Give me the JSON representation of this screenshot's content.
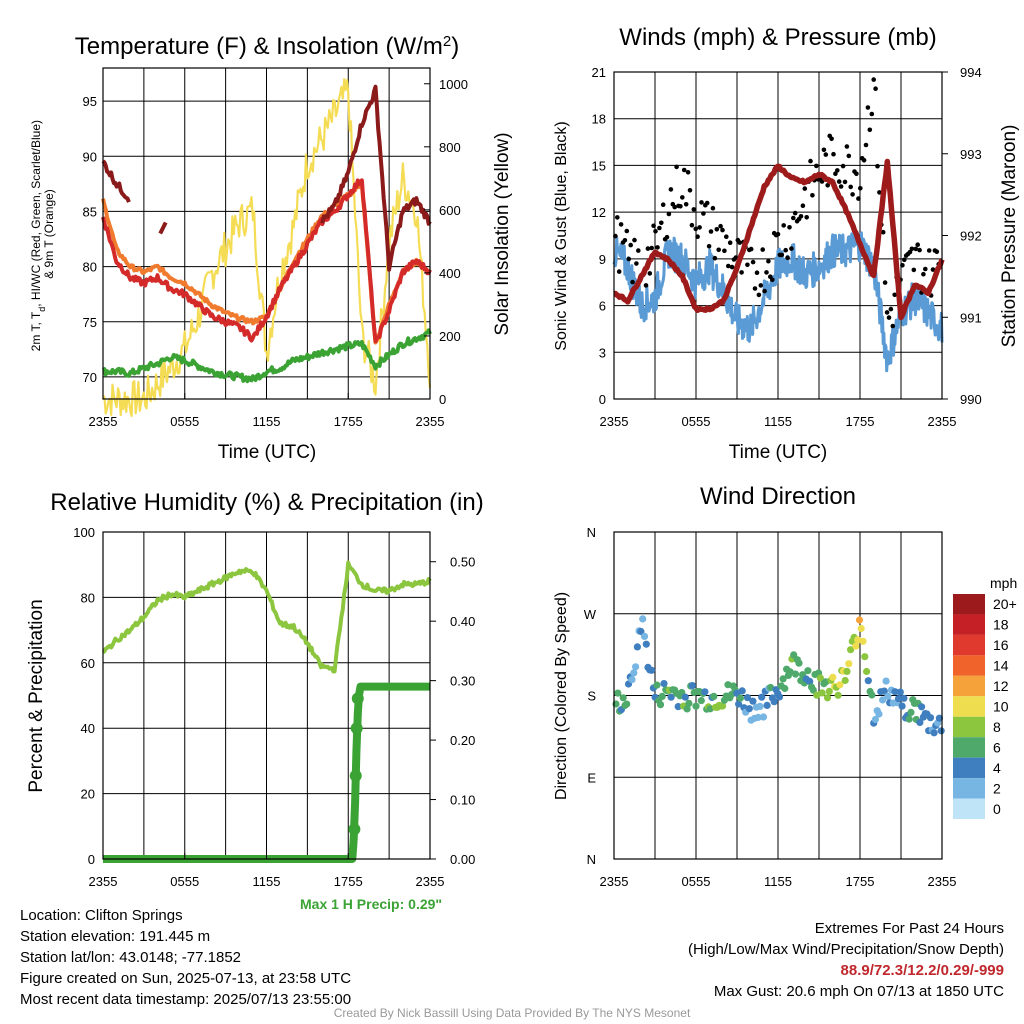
{
  "colors": {
    "tmax": "#8b1a1a",
    "temp": "#d42a2a",
    "dew": "#3aa334",
    "nine": "#f07a2e",
    "solar": "#f5dc55",
    "wind": "#5b9bd5",
    "gust": "#000000",
    "pressure": "#9e1b1b",
    "rh": "#8cc63f",
    "precip": "#3aa334"
  },
  "info": {
    "location": "Location: Clifton Springs",
    "elevation": "Station elevation: 191.445 m",
    "latlon": "Station lat/lon: 43.0148; -77.1852",
    "created": "Figure created on Sun, 2025-07-13, at 23:58 UTC",
    "recent": "Most recent data timestamp: 2025/07/13 23:55:00"
  },
  "extremes": {
    "title": "Extremes For Past 24 Hours",
    "subtitle": "(High/Low/Max Wind/Precipitation/Snow Depth)",
    "values": "88.9/72.3/12.2/0.29/-999",
    "gust": "Max Gust: 20.6 mph On 07/13 at 1850 UTC"
  },
  "credit": "Created By Nick Bassill Using Data Provided By The NYS Mesonet",
  "precip_max_label": "Max 1 H Precip: 0.29\"",
  "chart_data": [
    {
      "type": "line",
      "title": "Temperature (F) & Insolation (W/m²)",
      "xlabel": "Time (UTC)",
      "ylabel": "2m T, T_d, HI/WC (Red, Green, Scarlet/Blue) & 9m T (Orange)",
      "y2label": "Solar Insolation (Yellow)",
      "x_ticks": [
        "2355",
        "0555",
        "1155",
        "1755",
        "2355"
      ],
      "ylim": [
        68,
        98
      ],
      "y_ticks": [
        70,
        75,
        80,
        85,
        90,
        95
      ],
      "y2lim": [
        0,
        1050
      ],
      "y2_ticks": [
        0,
        200,
        400,
        600,
        800,
        1000
      ],
      "hours": [
        0,
        1,
        2,
        3,
        4,
        5,
        6,
        7,
        8,
        9,
        10,
        11,
        12,
        13,
        14,
        15,
        16,
        17,
        18,
        19,
        20,
        21,
        22,
        23,
        24
      ],
      "series": [
        {
          "values": [
            89.5,
            87.5,
            86,
            null,
            null,
            null,
            null,
            null,
            null,
            null,
            null,
            null,
            null,
            null,
            null,
            null,
            84,
            85.5,
            88.5,
            93,
            96,
            80,
            85,
            86,
            84
          ]
        },
        {
          "values": [
            84.5,
            80.5,
            79,
            78.5,
            79,
            78,
            77.5,
            76.5,
            75.5,
            75,
            74.5,
            73.5,
            75.5,
            78,
            80,
            82,
            84,
            85,
            86.5,
            88,
            73,
            76,
            79.5,
            80.5,
            79.5
          ]
        },
        {
          "values": [
            70.5,
            70.5,
            70.3,
            70.8,
            71.2,
            71.8,
            71.5,
            71,
            70.5,
            70.2,
            70,
            69.8,
            70.5,
            70.8,
            71.5,
            71.8,
            72.2,
            72.5,
            72.8,
            73,
            71,
            72,
            73,
            73.5,
            74
          ]
        },
        {
          "values": [
            86,
            81.5,
            80,
            79.5,
            80,
            79,
            78.5,
            77.5,
            76.5,
            75.8,
            75.3,
            75,
            75.5,
            78,
            80.5,
            82.5,
            84.5,
            85.5,
            86.5,
            87.5,
            73,
            76.5,
            79.5,
            80.5,
            79.5
          ]
        },
        {
          "values": [
            0,
            0,
            0,
            0,
            50,
            100,
            160,
            260,
            400,
            480,
            560,
            600,
            150,
            400,
            550,
            750,
            820,
            900,
            980,
            200,
            50,
            500,
            700,
            600,
            80
          ]
        },
        {
          "values": [
            9.5,
            8.5,
            6,
            6.5,
            9.5,
            9,
            7.5,
            8.5,
            7,
            5,
            4.5,
            6.5,
            8.5,
            9,
            8,
            8.5,
            9.5,
            9.5,
            10,
            8.5,
            2.5,
            5.5,
            6.5,
            5.5,
            4.5
          ]
        },
        {
          "values": [
            10.5,
            9,
            8.5,
            9.5,
            12.5,
            14,
            12,
            11,
            10,
            9,
            8,
            8.5,
            10,
            11,
            13,
            14.5,
            15.5,
            15,
            14.5,
            20.5,
            5,
            7.5,
            9,
            8,
            9
          ]
        },
        {
          "values": [
            991.3,
            991.2,
            991.5,
            991.8,
            991.7,
            991.5,
            991.1,
            991.1,
            991.2,
            991.6,
            992.1,
            992.6,
            992.85,
            992.7,
            992.65,
            992.75,
            992.65,
            992.3,
            991.9,
            991.5,
            992.9,
            991.0,
            991.4,
            991.3,
            991.7
          ]
        }
      ]
    },
    {
      "type": "scatter",
      "title": "Winds (mph) & Pressure (mb)",
      "xlabel": "Time (UTC)",
      "ylabel": "Sonic Wind & Gust (Blue, Black)",
      "y2label": "Station Pressure (Maroon)",
      "x_ticks": [
        "2355",
        "0555",
        "1155",
        "1755",
        "2355"
      ],
      "ylim": [
        0,
        21
      ],
      "y_ticks": [
        0,
        3,
        6,
        9,
        12,
        15,
        18,
        21
      ],
      "y2lim": [
        990,
        994
      ],
      "y2_ticks": [
        990,
        991,
        992,
        993,
        994
      ]
    },
    {
      "type": "line",
      "title": "Relative Humidity (%) & Precipitation (in)",
      "ylabel": "Percent & Precipitation",
      "x_ticks": [
        "2355",
        "0555",
        "1155",
        "1755",
        "2355"
      ],
      "ylim": [
        0,
        100
      ],
      "y_ticks": [
        0,
        20,
        40,
        60,
        80,
        100
      ],
      "y2lim": [
        0,
        0.55
      ],
      "y2_ticks": [
        "0.00",
        "0.10",
        "0.20",
        "0.30",
        "0.40",
        "0.50"
      ],
      "rh": [
        63,
        67,
        70,
        74,
        79,
        81,
        80,
        82,
        84,
        86,
        88,
        88,
        82,
        72,
        71,
        66,
        59,
        58,
        90,
        84,
        82,
        82,
        84,
        84,
        85
      ],
      "precip_steps": [
        [
          0,
          0
        ],
        [
          18.3,
          0
        ],
        [
          18.45,
          0.05
        ],
        [
          18.55,
          0.14
        ],
        [
          18.65,
          0.22
        ],
        [
          18.75,
          0.27
        ],
        [
          18.9,
          0.29
        ],
        [
          24,
          0.29
        ]
      ]
    },
    {
      "type": "scatter",
      "title": "Wind Direction",
      "ylabel": "Direction (Colored By Speed)",
      "x_ticks": [
        "2355",
        "0555",
        "1155",
        "1755",
        "2355"
      ],
      "y_ticks": [
        "N",
        "E",
        "S",
        "W",
        "N"
      ],
      "legend_title": "mph",
      "legend_labels": [
        "20+",
        "18",
        "16",
        "14",
        "12",
        "10",
        "8",
        "6",
        "4",
        "2",
        "0"
      ],
      "legend_colors": [
        "#9c1a1c",
        "#c52026",
        "#e03a2e",
        "#f0642c",
        "#f6a23b",
        "#eede4f",
        "#8cc63f",
        "#4fa96b",
        "#3f7ebf",
        "#77b5e3",
        "#bfe4f7"
      ],
      "legend_position": "right",
      "dir": [
        172,
        174,
        262,
        178,
        185,
        178,
        180,
        176,
        178,
        182,
        165,
        170,
        185,
        215,
        205,
        192,
        190,
        200,
        265,
        160,
        185,
        170,
        165,
        150,
        145
      ],
      "spd": [
        5,
        5,
        2,
        4,
        6,
        6,
        5,
        6,
        7,
        5,
        3,
        3,
        5,
        6,
        6,
        7,
        8,
        9,
        10,
        4,
        3,
        4,
        6,
        4,
        3
      ]
    }
  ]
}
